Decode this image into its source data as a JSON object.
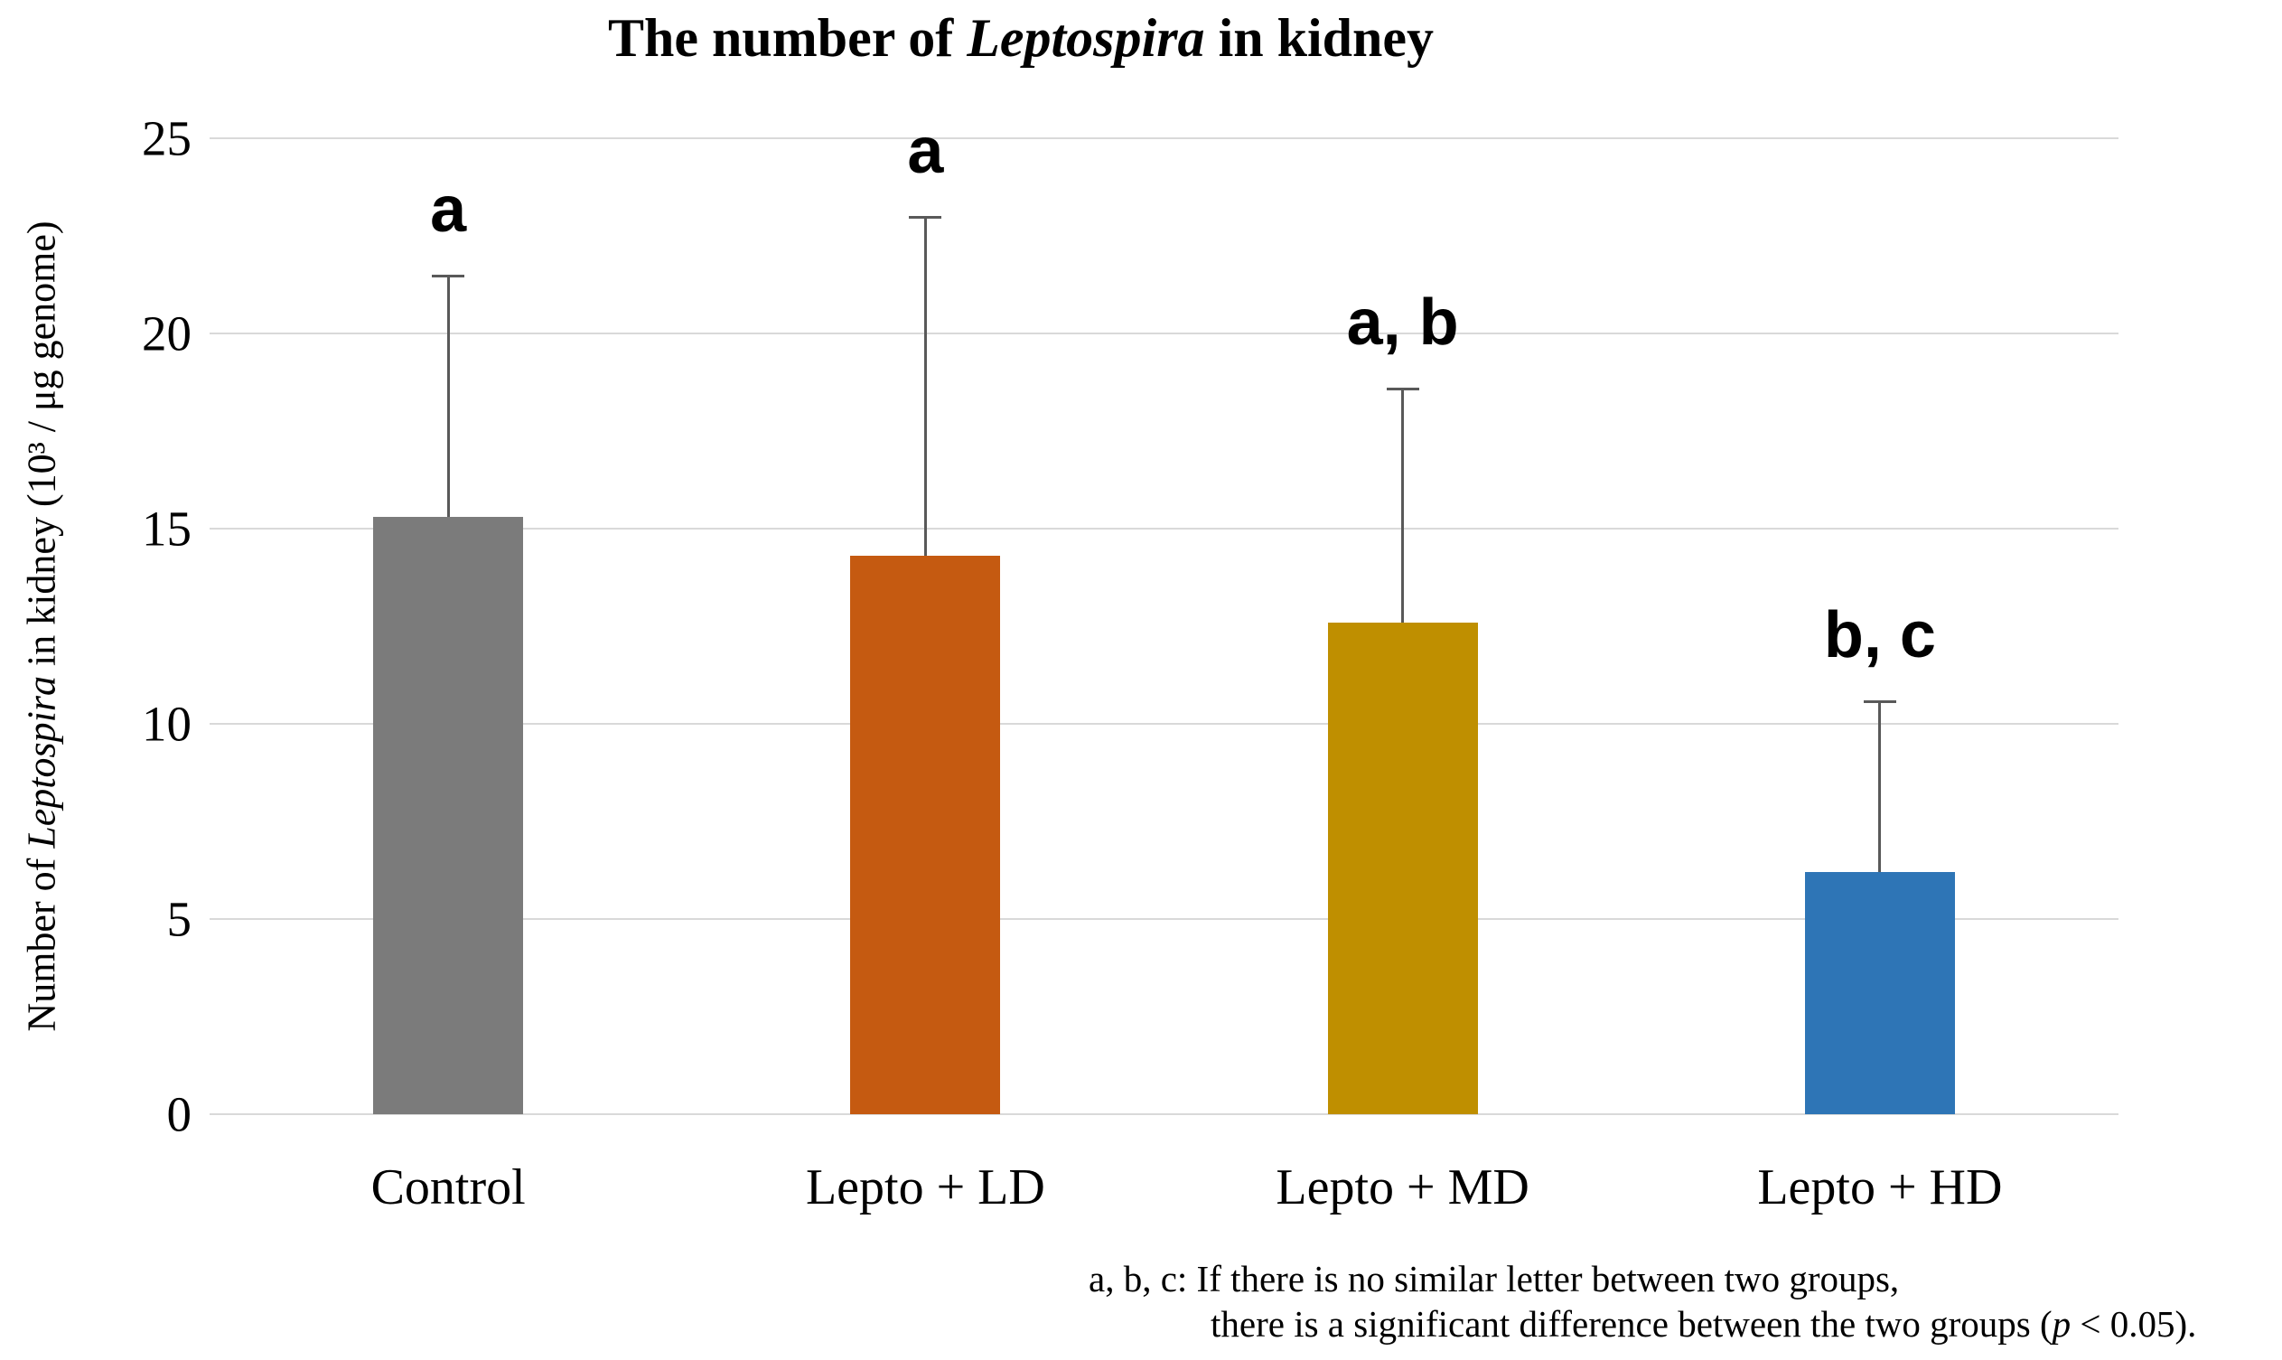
{
  "title": {
    "prefix": "The number of ",
    "italic": "Leptospira",
    "suffix": " in kidney"
  },
  "y_axis": {
    "title_prefix": "Number of ",
    "title_italic": "Leptospira",
    "title_suffix": " in kidney (10³ / μg genome)"
  },
  "chart_data": {
    "type": "bar",
    "title": "The number of Leptospira in kidney",
    "ylabel": "Number of Leptospira in kidney (10³ / μg genome)",
    "xlabel": "",
    "categories": [
      "Control",
      "Lepto + LD",
      "Lepto + MD",
      "Lepto + HD"
    ],
    "values": [
      15.3,
      14.3,
      12.6,
      6.2
    ],
    "errors_upper_sd": [
      6.2,
      8.7,
      6.0,
      4.4
    ],
    "error_bar_tops": [
      21.5,
      23.0,
      18.6,
      10.6
    ],
    "significance_labels": [
      "a",
      "a",
      "a, b",
      "b, c"
    ],
    "bar_colors": [
      "#7B7B7B",
      "#C55A11",
      "#BF8F00",
      "#2E75B6"
    ],
    "ylim": [
      0,
      25
    ],
    "yticks": [
      0,
      5,
      10,
      15,
      20,
      25
    ],
    "grid": true,
    "legend": false
  },
  "footnote": {
    "line1": "a, b, c: If there is no similar letter between two groups,",
    "line2_prefix": "there is a significant difference between the two groups (",
    "line2_p": "p",
    "line2_suffix": " < 0.05)."
  },
  "colors": {
    "background": "#FFFFFF",
    "gridline": "#D9D9D9",
    "error_bar": "#595959",
    "text": "#000000"
  }
}
